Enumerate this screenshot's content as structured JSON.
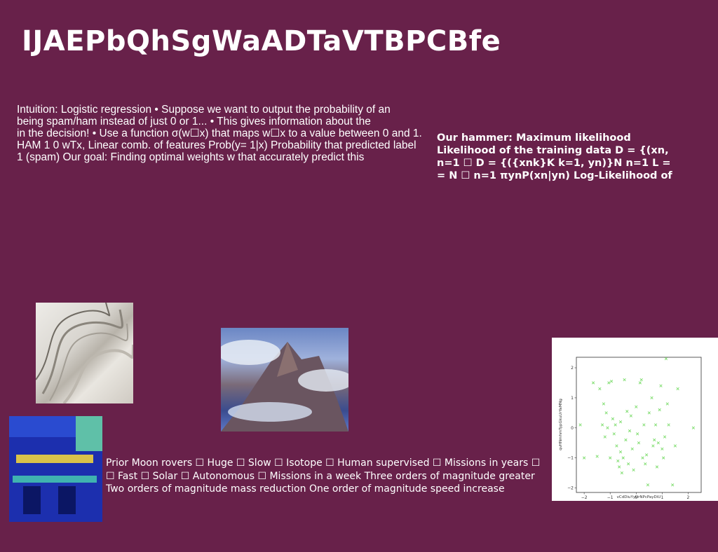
{
  "slide": {
    "title": "IJAEPbQhSgWaADTaVTBPCBfe",
    "left_text": {
      "lines": [
        "Intuition: Logistic regression • Suppose we want to output the probability of an",
        "being spam/ham instead of just 0 or 1... • This gives information about the",
        "in the decision! • Use a function σ(w☐x) that maps w☐x to a value between 0 and 1.",
        "HAM 1 0 wTx, Linear comb. of features Prob(y= 1|x) Probability that predicted label",
        "1 (spam) Our goal: Finding optimal weights w that accurately predict this"
      ]
    },
    "right_text": {
      "lines": [
        "Our hammer: Maximum likelihood",
        "Likelihood of the training data D = {(xn,",
        "n=1 ☐ D = {({xnk}K k=1, yn)}N n=1 L =",
        "= N ☐ n=1 πynP(xn|yn) Log-Likelihood of"
      ]
    },
    "bottom_text": {
      "lines": [
        "Prior Moon rovers ☐ Huge ☐ Slow ☐ Isotope ☐ Human supervised ☐ Missions in years ☐",
        "☐ Fast ☐ Solar ☐ Autonomous ☐ Missions in a week Three orders of magnitude greater",
        "Two orders of magnitude mass reduction One order of magnitude speed increase"
      ]
    },
    "images": {
      "swirl": "abstract-swirl-image",
      "mountain": "mountain-clouds-image",
      "building": "ornate-building-image"
    }
  },
  "chart_data": {
    "type": "scatter",
    "xlabel": "vCdDiuYyUrNPcPayDiU",
    "ylabel": "qvHNmhmTypGkuUrYaMNg",
    "xlim": [
      -2.3,
      2.5
    ],
    "ylim": [
      -2.15,
      2.35
    ],
    "xticks": [
      -2,
      -1,
      0,
      1,
      2
    ],
    "yticks": [
      -2,
      -1,
      0,
      1,
      2
    ],
    "marker": "x",
    "marker_color": "#7bdc6a",
    "points": [
      [
        -2.15,
        0.1
      ],
      [
        -2.0,
        -1.0
      ],
      [
        -1.65,
        1.5
      ],
      [
        -1.5,
        -0.95
      ],
      [
        -1.4,
        1.3
      ],
      [
        -1.3,
        0.1
      ],
      [
        -1.25,
        0.8
      ],
      [
        -1.2,
        -0.3
      ],
      [
        -1.15,
        0.5
      ],
      [
        -1.1,
        0.0
      ],
      [
        -1.05,
        1.5
      ],
      [
        -1.0,
        -1.0
      ],
      [
        -0.95,
        1.55
      ],
      [
        -0.9,
        0.3
      ],
      [
        -0.85,
        -0.2
      ],
      [
        -0.8,
        0.1
      ],
      [
        -0.75,
        -0.6
      ],
      [
        -0.7,
        -1.1
      ],
      [
        -0.65,
        -1.3
      ],
      [
        -0.6,
        -0.8
      ],
      [
        -0.55,
        -1.5
      ],
      [
        -0.5,
        -1.0
      ],
      [
        -0.45,
        1.6
      ],
      [
        -0.4,
        -0.4
      ],
      [
        -0.35,
        0.55
      ],
      [
        -0.3,
        -1.2
      ],
      [
        -0.25,
        -0.1
      ],
      [
        -0.2,
        0.4
      ],
      [
        -0.15,
        -0.7
      ],
      [
        -0.1,
        -1.4
      ],
      [
        0.0,
        0.7
      ],
      [
        0.05,
        -0.2
      ],
      [
        0.1,
        -0.5
      ],
      [
        0.15,
        1.5
      ],
      [
        0.2,
        1.6
      ],
      [
        0.25,
        -1.0
      ],
      [
        0.3,
        0.1
      ],
      [
        0.35,
        -1.2
      ],
      [
        0.4,
        -0.9
      ],
      [
        0.45,
        -1.9
      ],
      [
        0.5,
        0.5
      ],
      [
        0.6,
        1.0
      ],
      [
        0.7,
        -0.4
      ],
      [
        0.75,
        0.1
      ],
      [
        0.8,
        -1.3
      ],
      [
        0.85,
        -0.5
      ],
      [
        0.9,
        0.6
      ],
      [
        0.95,
        1.4
      ],
      [
        1.0,
        -0.7
      ],
      [
        1.05,
        -1.0
      ],
      [
        1.1,
        -0.3
      ],
      [
        1.15,
        2.3
      ],
      [
        1.2,
        0.8
      ],
      [
        1.25,
        0.1
      ],
      [
        1.4,
        -1.9
      ],
      [
        1.5,
        -0.6
      ],
      [
        1.6,
        1.3
      ],
      [
        2.2,
        0.0
      ],
      [
        -0.6,
        0.2
      ],
      [
        0.65,
        -0.6
      ]
    ]
  }
}
